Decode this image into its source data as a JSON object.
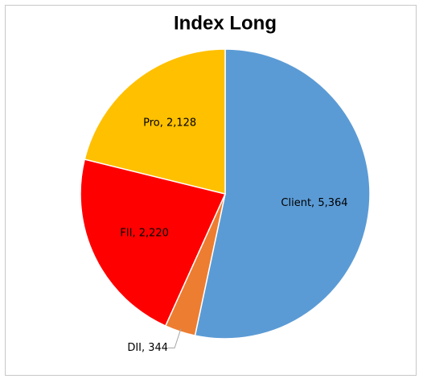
{
  "chart_data": {
    "type": "pie",
    "title": "Index Long",
    "categories": [
      "Client",
      "DII",
      "FII",
      "Pro"
    ],
    "values": [
      5364,
      344,
      2220,
      2128
    ],
    "value_labels": [
      "Client, 5,364",
      "DII, 344",
      "FII, 2,220",
      "Pro, 2,128"
    ],
    "colors": [
      "#5b9bd5",
      "#ed7d31",
      "#ff0000",
      "#ffc000"
    ]
  }
}
